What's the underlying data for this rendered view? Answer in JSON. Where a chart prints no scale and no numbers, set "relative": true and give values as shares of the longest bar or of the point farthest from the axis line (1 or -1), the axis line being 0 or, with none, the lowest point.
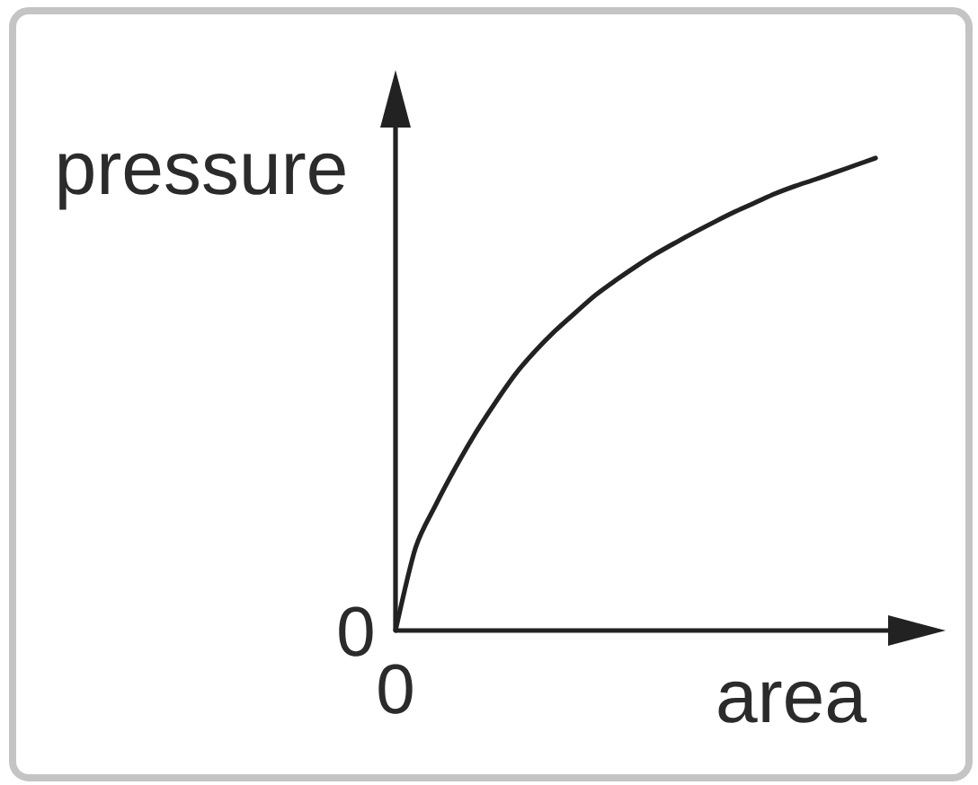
{
  "chart_data": {
    "type": "line",
    "xlabel": "area",
    "ylabel": "pressure",
    "relative": true,
    "categories": [
      null,
      null,
      null,
      null,
      null,
      null,
      null,
      null,
      null,
      null,
      null,
      null,
      null,
      null,
      null,
      null,
      null,
      null,
      null,
      null,
      null,
      null,
      null,
      null,
      null
    ],
    "values": [
      0,
      0.175,
      0.265,
      0.345,
      0.418,
      0.483,
      0.543,
      0.592,
      0.635,
      0.673,
      0.71,
      0.741,
      0.77,
      0.797,
      0.821,
      0.844,
      0.866,
      0.887,
      0.906,
      0.925,
      0.941,
      0.955,
      0.97,
      0.985,
      1
    ],
    "color": "#222222",
    "annotations": [
      "0",
      "0"
    ]
  }
}
